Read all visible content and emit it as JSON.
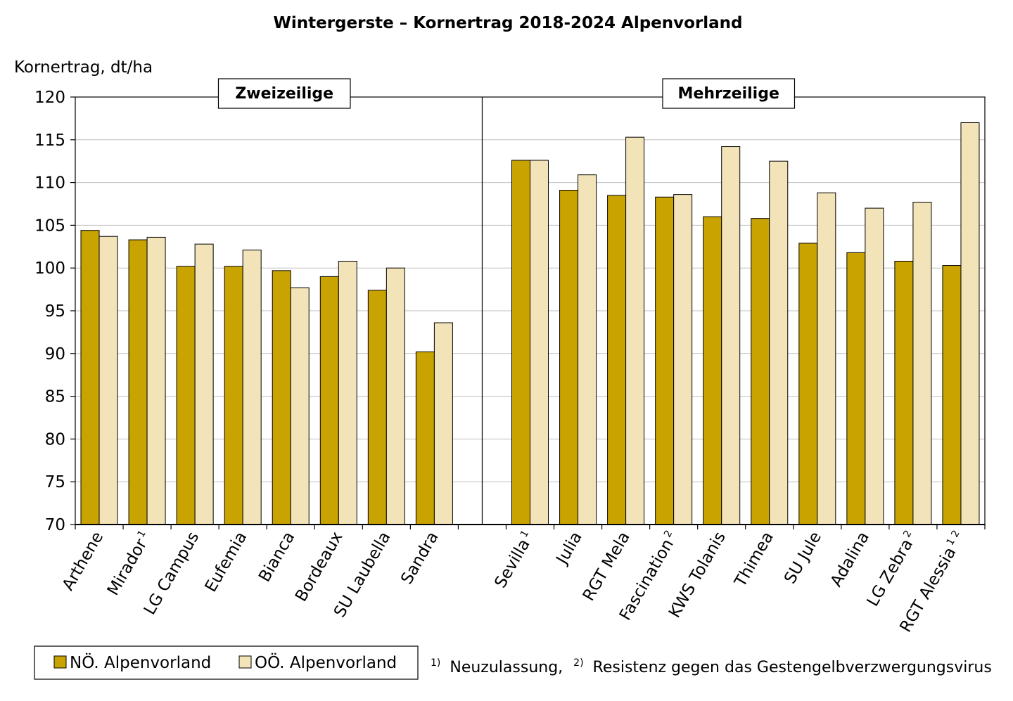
{
  "colors": {
    "noe": "#c9a300",
    "ooe": "#f2e3b8",
    "grid": "#c0c0c0",
    "axis": "#000000"
  },
  "chart_data": {
    "type": "bar",
    "title": "Wintergerste – Kornertrag 2018-2024 Alpenvorland",
    "ylabel": "Kornertrag, dt/ha",
    "ylim": [
      70,
      120
    ],
    "yticks": [
      70,
      75,
      80,
      85,
      90,
      95,
      100,
      105,
      110,
      115,
      120
    ],
    "grid": true,
    "legend_position": "bottom-left",
    "groups": [
      {
        "label": "Zweizeilige",
        "start": 0,
        "count": 8
      },
      {
        "label": "Mehrzeilige",
        "start": 9,
        "count": 10
      }
    ],
    "categories": [
      {
        "name": "Arthene",
        "sup": ""
      },
      {
        "name": "Mirador",
        "sup": "1"
      },
      {
        "name": "LG Campus",
        "sup": ""
      },
      {
        "name": "Eufemia",
        "sup": ""
      },
      {
        "name": "Bianca",
        "sup": ""
      },
      {
        "name": "Bordeaux",
        "sup": ""
      },
      {
        "name": "SU Laubella",
        "sup": ""
      },
      {
        "name": "Sandra",
        "sup": ""
      },
      {
        "name": "",
        "sup": ""
      },
      {
        "name": "Sevilla",
        "sup": "1"
      },
      {
        "name": "Julia",
        "sup": ""
      },
      {
        "name": "RGT Mela",
        "sup": ""
      },
      {
        "name": "Fascination",
        "sup": "2"
      },
      {
        "name": "KWS Tolanis",
        "sup": ""
      },
      {
        "name": "Thimea",
        "sup": ""
      },
      {
        "name": "SU Jule",
        "sup": ""
      },
      {
        "name": "Adalina",
        "sup": ""
      },
      {
        "name": "LG Zebra",
        "sup": "2"
      },
      {
        "name": "RGT Alessia",
        "sup": "1 2"
      }
    ],
    "series": [
      {
        "name": "NÖ. Alpenvorland",
        "color_key": "noe",
        "values": [
          104.4,
          103.3,
          100.2,
          100.2,
          99.7,
          99.0,
          97.4,
          90.2,
          null,
          112.6,
          109.1,
          108.5,
          108.3,
          106.0,
          105.8,
          102.9,
          101.8,
          100.8,
          100.3
        ]
      },
      {
        "name": "OÖ. Alpenvorland",
        "color_key": "ooe",
        "values": [
          103.7,
          103.6,
          102.8,
          102.1,
          97.7,
          100.8,
          100.0,
          93.6,
          null,
          112.6,
          110.9,
          115.3,
          108.6,
          114.2,
          112.5,
          108.8,
          107.0,
          107.7,
          117.0
        ]
      }
    ]
  },
  "footnote": {
    "sup1": "1)",
    "text1": "Neuzulassung,",
    "sup2": "2)",
    "text2": "Resistenz gegen das Gestengelbverzwergungsvirus"
  }
}
